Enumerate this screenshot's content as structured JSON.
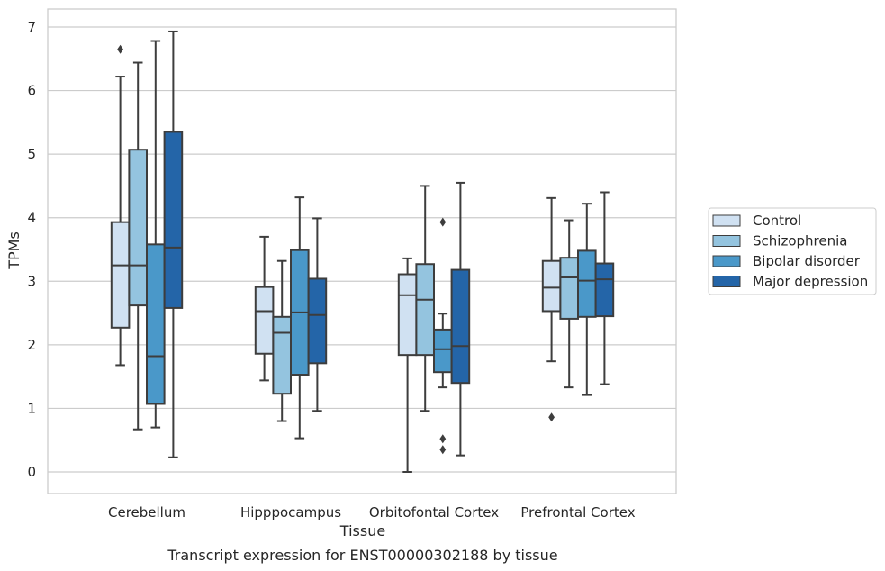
{
  "caption": "Transcript expression for ENST00000302188 by tissue",
  "chart_data": {
    "type": "box",
    "xlabel": "Tissue",
    "ylabel": "TPMs",
    "ylim": [
      -0.35,
      7.3
    ],
    "yticks": [
      0,
      1,
      2,
      3,
      4,
      5,
      6,
      7
    ],
    "grid": "horizontal",
    "legend_position": "right",
    "categories": [
      "Cerebellum",
      "Hipppocampus",
      "Orbitofontal Cortex",
      "Prefrontal Cortex"
    ],
    "series": [
      {
        "name": "Control",
        "color": "#d0e1f2",
        "boxes": [
          {
            "min": 1.68,
            "q1": 2.27,
            "median": 3.25,
            "q3": 3.93,
            "max": 6.22,
            "outliers": [
              6.65
            ]
          },
          {
            "min": 1.44,
            "q1": 1.86,
            "median": 2.53,
            "q3": 2.91,
            "max": 3.7,
            "outliers": []
          },
          {
            "min": 0.0,
            "q1": 1.84,
            "median": 2.78,
            "q3": 3.11,
            "max": 3.36,
            "outliers": []
          },
          {
            "min": 1.74,
            "q1": 2.53,
            "median": 2.9,
            "q3": 3.32,
            "max": 4.31,
            "outliers": [
              0.86
            ]
          }
        ]
      },
      {
        "name": "Schizophrenia",
        "color": "#94c4df",
        "boxes": [
          {
            "min": 0.67,
            "q1": 2.62,
            "median": 3.25,
            "q3": 5.07,
            "max": 6.44,
            "outliers": []
          },
          {
            "min": 0.8,
            "q1": 1.23,
            "median": 2.19,
            "q3": 2.44,
            "max": 3.32,
            "outliers": []
          },
          {
            "min": 0.96,
            "q1": 1.84,
            "median": 2.71,
            "q3": 3.27,
            "max": 4.5,
            "outliers": []
          },
          {
            "min": 1.33,
            "q1": 2.41,
            "median": 3.06,
            "q3": 3.37,
            "max": 3.96,
            "outliers": []
          }
        ]
      },
      {
        "name": "Bipolar disorder",
        "color": "#4a98c9",
        "boxes": [
          {
            "min": 0.7,
            "q1": 1.07,
            "median": 1.82,
            "q3": 3.58,
            "max": 6.78,
            "outliers": []
          },
          {
            "min": 0.53,
            "q1": 1.53,
            "median": 2.51,
            "q3": 3.49,
            "max": 4.32,
            "outliers": []
          },
          {
            "min": 1.33,
            "q1": 1.57,
            "median": 1.93,
            "q3": 2.24,
            "max": 2.49,
            "outliers": [
              3.93,
              0.52,
              0.35
            ]
          },
          {
            "min": 1.21,
            "q1": 2.44,
            "median": 3.01,
            "q3": 3.48,
            "max": 4.22,
            "outliers": []
          }
        ]
      },
      {
        "name": "Major depression",
        "color": "#2465a8",
        "boxes": [
          {
            "min": 0.23,
            "q1": 2.58,
            "median": 3.53,
            "q3": 5.35,
            "max": 6.93,
            "outliers": []
          },
          {
            "min": 0.96,
            "q1": 1.71,
            "median": 2.47,
            "q3": 3.04,
            "max": 3.99,
            "outliers": []
          },
          {
            "min": 0.26,
            "q1": 1.4,
            "median": 1.98,
            "q3": 3.18,
            "max": 4.55,
            "outliers": []
          },
          {
            "min": 1.38,
            "q1": 2.45,
            "median": 3.03,
            "q3": 3.28,
            "max": 4.4,
            "outliers": []
          }
        ]
      }
    ]
  }
}
